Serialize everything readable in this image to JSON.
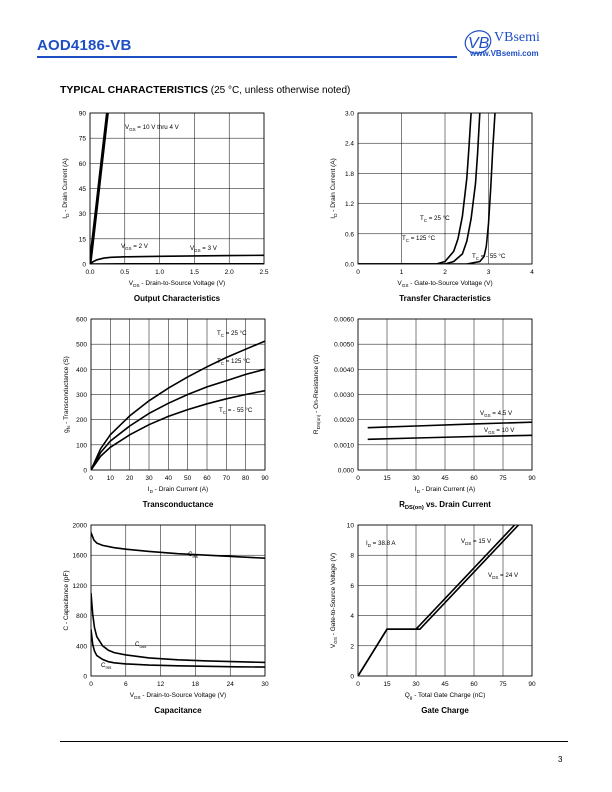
{
  "header": {
    "part_number": "AOD4186-VB",
    "brand_name": "VBsemi",
    "brand_url": "www.VBsemi.com",
    "logo_mark": "VB"
  },
  "section": {
    "title": "TYPICAL CHARACTERISTICS",
    "note": "(25 °C, unless otherwise noted)"
  },
  "footer": {
    "page_number": "3"
  },
  "chart_data": [
    {
      "id": "output",
      "type": "line",
      "title": "Output Characteristics",
      "xlabel_main": "V",
      "xlabel_sub": "DS",
      "xlabel_rest": " - Drain-to-Source Voltage (V)",
      "ylabel_main": "I",
      "ylabel_sub": "D",
      "ylabel_rest": " - Drain Current (A)",
      "xlim": [
        0,
        2.5
      ],
      "ylim": [
        0,
        90
      ],
      "xticks": [
        "0.0",
        "0.5",
        "1.0",
        "1.5",
        "2.0",
        "2.5"
      ],
      "yticks": [
        "0",
        "15",
        "30",
        "45",
        "60",
        "75",
        "90"
      ],
      "series": [
        {
          "name": "V_GS = 10 V thru 4 V",
          "x": [
            0,
            0.05,
            0.1,
            0.15,
            0.2,
            0.25
          ],
          "y": [
            0,
            18,
            36,
            54,
            72,
            90
          ]
        },
        {
          "name": "V_GS = 3 V",
          "x": [
            0,
            0.05,
            0.1,
            0.2,
            0.3,
            0.5,
            1.0,
            1.5,
            2.0,
            2.5
          ],
          "y": [
            0,
            1.5,
            2.5,
            3.5,
            4,
            4.3,
            4.6,
            4.8,
            5,
            5.2
          ]
        },
        {
          "name": "V_GS = 2 V",
          "x": [
            0,
            0.5,
            1.0,
            1.5,
            2.0,
            2.5
          ],
          "y": [
            0,
            0.1,
            0.1,
            0.1,
            0.1,
            0.1
          ]
        }
      ],
      "annotations": [
        {
          "main": "V",
          "sub": "GS",
          "rest": " = 10 V thru 4 V"
        },
        {
          "main": "V",
          "sub": "GS",
          "rest": " = 2 V"
        },
        {
          "main": "V",
          "sub": "GS",
          "rest": " = 3 V"
        }
      ]
    },
    {
      "id": "transfer",
      "type": "line",
      "title": "Transfer Characteristics",
      "xlabel_main": "V",
      "xlabel_sub": "GS",
      "xlabel_rest": " - Gate-to-Source Voltage (V)",
      "ylabel_main": "I",
      "ylabel_sub": "D",
      "ylabel_rest": " - Drain Current (A)",
      "xlim": [
        0,
        4
      ],
      "ylim": [
        0,
        3
      ],
      "xticks": [
        "0",
        "1",
        "2",
        "3",
        "4"
      ],
      "yticks": [
        "0.0",
        "0.6",
        "1.2",
        "1.8",
        "2.4",
        "3.0"
      ],
      "series": [
        {
          "name": "T_C = 25 °C",
          "x": [
            0,
            2.0,
            2.2,
            2.4,
            2.5,
            2.6,
            2.7,
            2.75,
            2.8
          ],
          "y": [
            0,
            0.0,
            0.05,
            0.2,
            0.45,
            0.9,
            1.6,
            2.2,
            3.0
          ]
        },
        {
          "name": "T_C = 125 °C",
          "x": [
            0,
            1.8,
            2.0,
            2.2,
            2.3,
            2.4,
            2.5,
            2.55,
            2.6
          ],
          "y": [
            0,
            0.0,
            0.05,
            0.25,
            0.5,
            0.95,
            1.7,
            2.3,
            3.0
          ]
        },
        {
          "name": "T_C = - 55 °C",
          "x": [
            0,
            2.5,
            2.8,
            2.9,
            2.95,
            3.0,
            3.05,
            3.1,
            3.15
          ],
          "y": [
            0,
            0.0,
            0.05,
            0.15,
            0.35,
            0.8,
            1.5,
            2.3,
            3.0
          ]
        }
      ],
      "annotations": [
        {
          "main": "T",
          "sub": "C",
          "rest": " = 25 °C"
        },
        {
          "main": "T",
          "sub": "C",
          "rest": " = 125 °C"
        },
        {
          "main": "T",
          "sub": "C",
          "rest": " = - 55 °C"
        }
      ]
    },
    {
      "id": "transconductance",
      "type": "line",
      "title": "Transconductance",
      "xlabel_main": "I",
      "xlabel_sub": "D",
      "xlabel_rest": " - Drain Current (A)",
      "ylabel_main": "g",
      "ylabel_sub": "fs",
      "ylabel_rest": " - Transconductance (S)",
      "xlim": [
        0,
        90
      ],
      "ylim": [
        0,
        600
      ],
      "xticks": [
        "0",
        "10",
        "20",
        "30",
        "40",
        "50",
        "60",
        "70",
        "80",
        "90"
      ],
      "yticks": [
        "0",
        "100",
        "200",
        "300",
        "400",
        "500",
        "600"
      ],
      "series": [
        {
          "name": "T_C = 25 °C",
          "x": [
            0,
            5,
            10,
            20,
            30,
            40,
            50,
            60,
            70,
            80,
            90
          ],
          "y": [
            0,
            85,
            140,
            215,
            275,
            325,
            370,
            410,
            447,
            480,
            512
          ]
        },
        {
          "name": "T_C = 125 °C",
          "x": [
            0,
            5,
            10,
            20,
            30,
            40,
            50,
            60,
            70,
            80,
            90
          ],
          "y": [
            0,
            70,
            115,
            175,
            225,
            265,
            300,
            330,
            355,
            380,
            400
          ]
        },
        {
          "name": "T_C = - 55 °C",
          "x": [
            0,
            5,
            10,
            20,
            30,
            40,
            50,
            60,
            70,
            80,
            90
          ],
          "y": [
            0,
            55,
            90,
            140,
            180,
            213,
            240,
            263,
            283,
            300,
            315
          ]
        }
      ],
      "annotations": [
        {
          "main": "T",
          "sub": "C",
          "rest": " = 25 °C"
        },
        {
          "main": "T",
          "sub": "C",
          "rest": " = 125 °C"
        },
        {
          "main": "T",
          "sub": "C",
          "rest": " = - 55 °C"
        }
      ]
    },
    {
      "id": "rdson",
      "type": "line",
      "title": "vs. Drain Current",
      "title_main": "R",
      "title_sub": "DS(on)",
      "xlabel_main": "I",
      "xlabel_sub": "D",
      "xlabel_rest": " - Drain Current (A)",
      "ylabel_main": "R",
      "ylabel_sub": "DS(on)",
      "ylabel_rest": " - On-Resistance (Ω)",
      "xlim": [
        0,
        90
      ],
      "ylim": [
        0,
        0.006
      ],
      "xticks": [
        "0",
        "15",
        "30",
        "45",
        "60",
        "75",
        "90"
      ],
      "yticks": [
        "0.000",
        "0.0010",
        "0.0020",
        "0.0030",
        "0.0040",
        "0.0050",
        "0.0060"
      ],
      "series": [
        {
          "name": "V_GS = 4.5 V",
          "x": [
            5,
            30,
            60,
            90
          ],
          "y": [
            0.00168,
            0.00175,
            0.00183,
            0.0019
          ]
        },
        {
          "name": "V_GS = 10 V",
          "x": [
            5,
            30,
            60,
            90
          ],
          "y": [
            0.00122,
            0.00127,
            0.00133,
            0.00138
          ]
        }
      ],
      "annotations": [
        {
          "main": "V",
          "sub": "GS",
          "rest": " = 4.5 V"
        },
        {
          "main": "V",
          "sub": "GS",
          "rest": " = 10 V"
        }
      ]
    },
    {
      "id": "capacitance",
      "type": "line",
      "title": "Capacitance",
      "xlabel_main": "V",
      "xlabel_sub": "DS",
      "xlabel_rest": " - Drain-to-Source Voltage (V)",
      "ylabel_main": "C - Capacitance (pF)",
      "ylabel_sub": "",
      "ylabel_rest": "",
      "xlim": [
        0,
        30
      ],
      "ylim": [
        0,
        2000
      ],
      "xticks": [
        "0",
        "6",
        "12",
        "18",
        "24",
        "30"
      ],
      "yticks": [
        "0",
        "400",
        "800",
        "1200",
        "1600",
        "2000"
      ],
      "series": [
        {
          "name": "C_iss",
          "x": [
            0,
            0.5,
            1,
            2,
            4,
            6,
            10,
            15,
            20,
            25,
            30
          ],
          "y": [
            1900,
            1800,
            1760,
            1730,
            1700,
            1680,
            1650,
            1620,
            1600,
            1580,
            1560
          ]
        },
        {
          "name": "C_oss",
          "x": [
            0,
            0.3,
            0.6,
            1,
            2,
            3,
            4,
            6,
            10,
            15,
            20,
            25,
            30
          ],
          "y": [
            1100,
            820,
            640,
            520,
            400,
            340,
            310,
            280,
            240,
            215,
            200,
            190,
            180
          ]
        },
        {
          "name": "C_rss",
          "x": [
            0,
            0.3,
            0.6,
            1,
            2,
            3,
            4,
            6,
            10,
            15,
            20,
            25,
            30
          ],
          "y": [
            620,
            420,
            330,
            270,
            220,
            190,
            175,
            160,
            145,
            135,
            128,
            122,
            118
          ]
        }
      ],
      "annotations": [
        {
          "main": "C",
          "sub": "iss",
          "rest": ""
        },
        {
          "main": "C",
          "sub": "oss",
          "rest": ""
        },
        {
          "main": "C",
          "sub": "rss",
          "rest": ""
        }
      ]
    },
    {
      "id": "gatecharge",
      "type": "line",
      "title": "Gate Charge",
      "xlabel_main": "Q",
      "xlabel_sub": "g",
      "xlabel_rest": " - Total Gate Charge (nC)",
      "ylabel_main": "V",
      "ylabel_sub": "GS",
      "ylabel_rest": " - Gate-to-Source Voltage (V)",
      "xlim": [
        0,
        90
      ],
      "ylim": [
        0,
        10
      ],
      "xticks": [
        "0",
        "15",
        "30",
        "45",
        "60",
        "75",
        "90"
      ],
      "yticks": [
        "0",
        "2",
        "4",
        "6",
        "8",
        "10"
      ],
      "series": [
        {
          "name": "V_DS = 15 V",
          "x": [
            0,
            15,
            30,
            81
          ],
          "y": [
            0,
            3.1,
            3.1,
            10
          ]
        },
        {
          "name": "V_DS = 24 V",
          "x": [
            0,
            15,
            32,
            83
          ],
          "y": [
            0,
            3.1,
            3.1,
            10
          ]
        }
      ],
      "annotations": [
        {
          "main": "I",
          "sub": "D",
          "rest": " = 38.8 A"
        },
        {
          "main": "V",
          "sub": "DS",
          "rest": " = 15 V"
        },
        {
          "main": "V",
          "sub": "DS",
          "rest": " = 24 V"
        }
      ]
    }
  ]
}
